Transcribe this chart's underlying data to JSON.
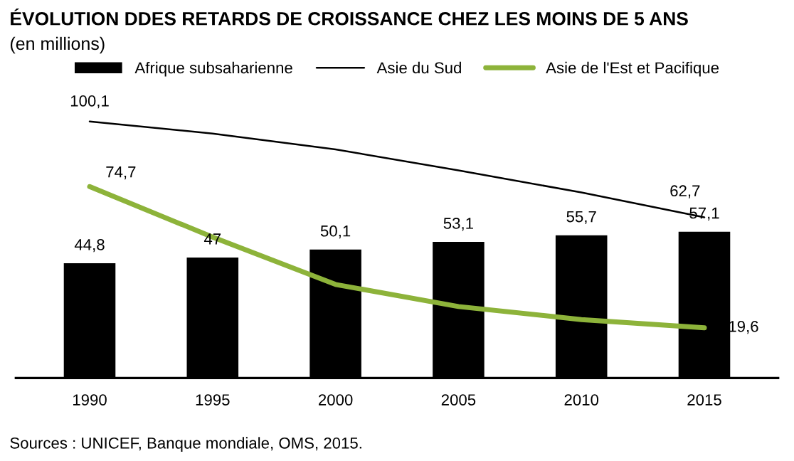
{
  "chart_data": {
    "type": "bar",
    "title": "ÉVOLUTION DDES RETARDS DE CROISSANCE CHEZ LES MOINS DE 5 ANS",
    "subtitle": "(en millions)",
    "categories": [
      "1990",
      "1995",
      "2000",
      "2005",
      "2010",
      "2015"
    ],
    "series": [
      {
        "name": "Afrique subsaharienne",
        "color": "#000000",
        "values": [
          44.8,
          47,
          50.1,
          53.1,
          55.7,
          57.1
        ],
        "value_labels": [
          "44,8",
          "47",
          "50,1",
          "53,1",
          "55,7",
          "57,1"
        ]
      },
      {
        "name": "Asie du Sud",
        "type": "line",
        "color": "#000000",
        "values": [
          100.1,
          95.4,
          89.2,
          81.0,
          72.4,
          62.7
        ],
        "value_labels": [
          "100,1",
          null,
          null,
          null,
          null,
          "62,7"
        ]
      },
      {
        "name": "Asie de l'Est et Pacifique",
        "type": "line",
        "color": "#8db33a",
        "values": [
          74.7,
          55.0,
          36.5,
          27.9,
          22.8,
          19.6
        ],
        "value_labels": [
          "74,7",
          null,
          null,
          null,
          null,
          "19,6"
        ]
      }
    ],
    "legend": "top",
    "grid": false,
    "tick_labels": "x",
    "annotations": [
      "Sources : UNICEF, Banque mondiale, OMS, 2015."
    ]
  }
}
